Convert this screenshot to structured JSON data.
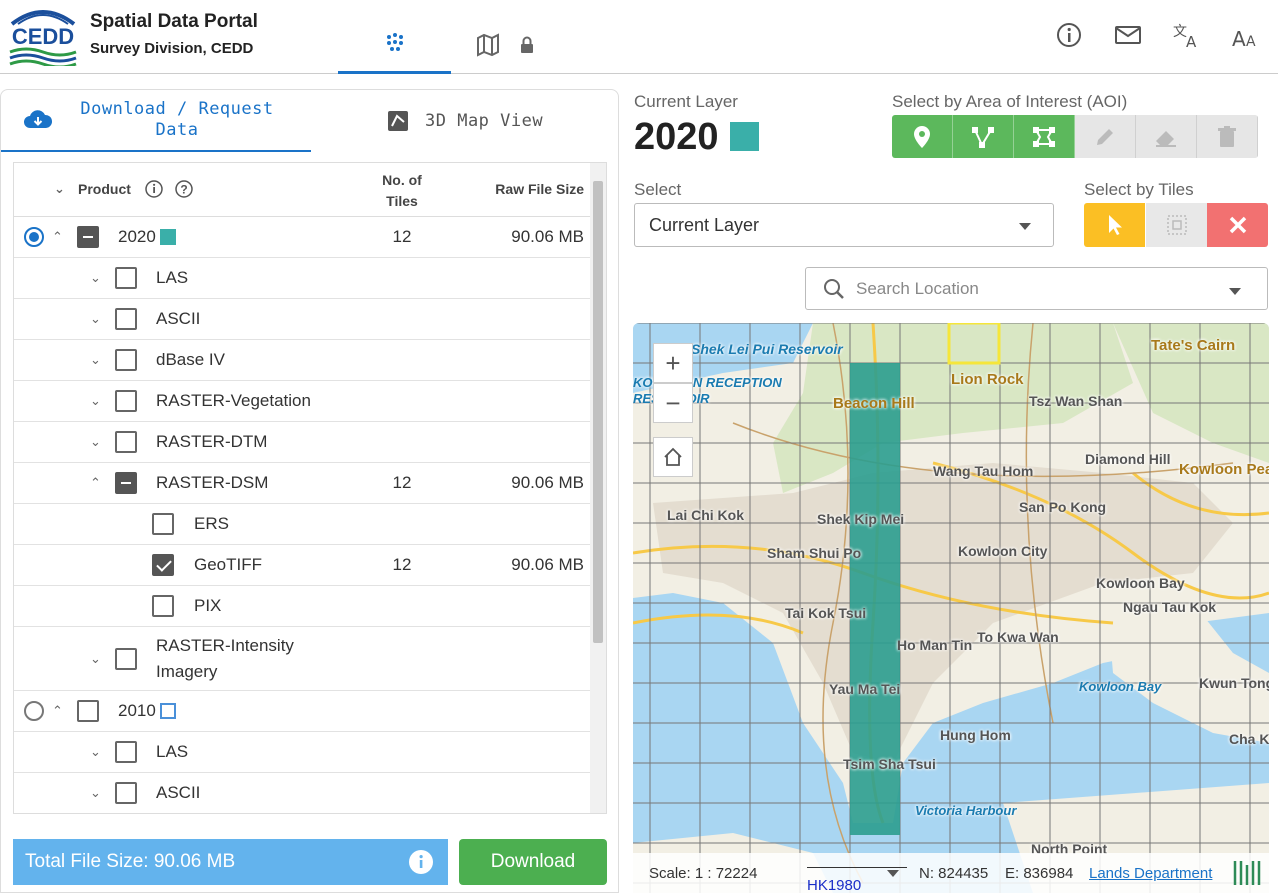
{
  "header": {
    "logo_text": "CEDD",
    "title": "Spatial Data Portal",
    "subtitle": "Survey Division, CEDD",
    "nav_tabs": [
      {
        "icon": "dots-grid-icon",
        "active": true
      },
      {
        "icon": "map-icon",
        "locked": true,
        "active": false
      }
    ],
    "right_icons": [
      "info-icon",
      "mail-icon",
      "translate-icon",
      "font-size-icon"
    ]
  },
  "left_panel": {
    "tabs": [
      {
        "label": "Download / Request Data",
        "icon": "cloud-download-icon",
        "active": true
      },
      {
        "label": "3D Map View",
        "icon": "3d-map-icon",
        "active": false
      }
    ],
    "table": {
      "headers": {
        "product": "Product",
        "tiles": "No. of Tiles",
        "size": "Raw File Size"
      },
      "rows": [
        {
          "name": "2020",
          "tiles": "12",
          "size": "90.06 MB"
        },
        {
          "name": "LAS",
          "tiles": "",
          "size": ""
        },
        {
          "name": "ASCII",
          "tiles": "",
          "size": ""
        },
        {
          "name": "dBase IV",
          "tiles": "",
          "size": ""
        },
        {
          "name": "RASTER-Vegetation",
          "tiles": "",
          "size": ""
        },
        {
          "name": "RASTER-DTM",
          "tiles": "",
          "size": ""
        },
        {
          "name": "RASTER-DSM",
          "tiles": "12",
          "size": "90.06 MB"
        },
        {
          "name": "ERS",
          "tiles": "",
          "size": ""
        },
        {
          "name": "GeoTIFF",
          "tiles": "12",
          "size": "90.06 MB"
        },
        {
          "name": "PIX",
          "tiles": "",
          "size": ""
        },
        {
          "name": "RASTER-Intensity Imagery",
          "tiles": "",
          "size": ""
        },
        {
          "name": "2010",
          "tiles": "",
          "size": ""
        },
        {
          "name": "LAS",
          "tiles": "",
          "size": ""
        },
        {
          "name": "ASCII",
          "tiles": "",
          "size": ""
        }
      ]
    },
    "total_label": "Total File Size: 90.06 MB",
    "download_label": "Download"
  },
  "right_panel": {
    "current_layer_label": "Current Layer",
    "current_layer_value": "2020",
    "current_layer_color": "#3aafa9",
    "aoi_label": "Select by Area of Interest (AOI)",
    "aoi_tools": [
      "point-icon",
      "polyline-icon",
      "polygon-icon",
      "edit-icon",
      "eraser-icon",
      "trash-icon"
    ],
    "select_label": "Select",
    "select_value": "Current Layer",
    "tiles_label": "Select by Tiles",
    "tile_tools": [
      "pointer-icon",
      "box-select-icon",
      "clear-icon"
    ],
    "search_placeholder": "Search Location"
  },
  "map": {
    "place_labels": [
      "Shek Lei Pui Reservoir",
      "KOWLOON RECEPTION RESERVOIR",
      "Tate's Cairn",
      "Lion Rock",
      "Beacon Hill",
      "Tsz Wan Shan",
      "Diamond Hill",
      "Wang Tau Hom",
      "Kowloon Peak",
      "Lai Chi Kok",
      "Shek Kip Mei",
      "San Po Kong",
      "Sham Shui Po",
      "Kowloon City",
      "Kowloon Bay",
      "Tai Kok Tsui",
      "Ngau Tau Kok",
      "Ho Man Tin",
      "To Kwa Wan",
      "Kowloon Bay",
      "Kwun Tong",
      "Yau Ma Tei",
      "Hung Hom",
      "Cha K",
      "Tsim Sha Tsui",
      "Victoria Harbour",
      "North Point"
    ],
    "footer": {
      "scale": "Scale: 1 : 72224",
      "crs": "HK1980",
      "northing": "N: 824435",
      "easting": "E: 836984",
      "attribution": "Lands Department"
    },
    "colors": {
      "water": "#a9d6f2",
      "land": "#f2efe4",
      "selected_tiles": "#2b9d8f",
      "grid": "#777777"
    }
  }
}
